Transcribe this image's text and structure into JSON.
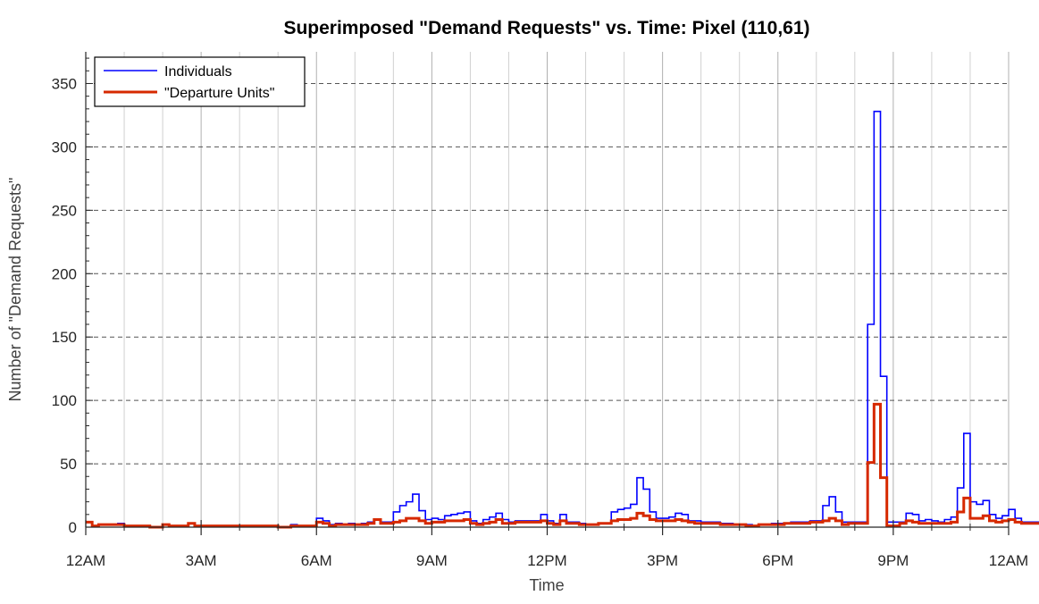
{
  "chart_data": {
    "type": "line",
    "title": "Superimposed \"Demand Requests\" vs. Time: Pixel (110,61)",
    "xlabel": "Time",
    "ylabel": "Number of \"Demand Requests\"",
    "x_tick_labels": [
      "12AM",
      "3AM",
      "6AM",
      "9AM",
      "12PM",
      "3PM",
      "6PM",
      "9PM",
      "12AM"
    ],
    "y_ticks": [
      0,
      50,
      100,
      150,
      200,
      250,
      300,
      350
    ],
    "ylim": [
      0,
      375
    ],
    "xlim_hours": [
      0,
      24
    ],
    "bin_minutes": 10,
    "grid": "x solid, y dashed",
    "legend_position": "top-left",
    "colors": {
      "individuals": "#0000ff",
      "departure_units": "#d62900",
      "grid": "#b0b0b0",
      "axis": "#262626"
    },
    "series": [
      {
        "name": "Individuals",
        "style": "step",
        "values": [
          4,
          1,
          2,
          2,
          2,
          3,
          1,
          1,
          1,
          1,
          0,
          0,
          2,
          1,
          1,
          1,
          3,
          1,
          1,
          1,
          1,
          1,
          1,
          1,
          1,
          1,
          1,
          1,
          1,
          1,
          0,
          0,
          2,
          1,
          1,
          1,
          7,
          5,
          2,
          3,
          2,
          3,
          2,
          3,
          4,
          6,
          4,
          4,
          12,
          17,
          20,
          26,
          13,
          6,
          7,
          6,
          9,
          10,
          11,
          12,
          5,
          3,
          6,
          8,
          11,
          6,
          4,
          5,
          5,
          5,
          5,
          10,
          5,
          3,
          10,
          4,
          4,
          3,
          2,
          2,
          3,
          3,
          12,
          14,
          15,
          18,
          39,
          30,
          12,
          7,
          7,
          8,
          11,
          10,
          5,
          5,
          4,
          4,
          4,
          3,
          3,
          2,
          2,
          2,
          1,
          2,
          2,
          3,
          3,
          3,
          4,
          4,
          4,
          5,
          5,
          17,
          24,
          12,
          4,
          4,
          4,
          4,
          160,
          328,
          119,
          4,
          4,
          4,
          11,
          10,
          5,
          6,
          5,
          4,
          6,
          8,
          31,
          74,
          20,
          18,
          21,
          10,
          7,
          9,
          14,
          7,
          4,
          4,
          4,
          4,
          7,
          6,
          8,
          9,
          8,
          8,
          8,
          6,
          5,
          4,
          2,
          2,
          2,
          2,
          2,
          3,
          2,
          2,
          3,
          6
        ]
      },
      {
        "name": "\"Departure Units\"",
        "style": "step",
        "values": [
          4,
          1,
          2,
          2,
          2,
          2,
          1,
          1,
          1,
          1,
          0,
          0,
          2,
          1,
          1,
          1,
          3,
          1,
          1,
          1,
          1,
          1,
          1,
          1,
          1,
          1,
          1,
          1,
          1,
          1,
          0,
          0,
          1,
          1,
          1,
          1,
          4,
          3,
          1,
          2,
          2,
          2,
          2,
          2,
          3,
          6,
          3,
          3,
          4,
          5,
          7,
          7,
          5,
          3,
          4,
          4,
          5,
          5,
          5,
          6,
          3,
          2,
          3,
          4,
          6,
          3,
          3,
          4,
          4,
          4,
          4,
          5,
          3,
          2,
          5,
          3,
          3,
          2,
          2,
          2,
          3,
          3,
          5,
          6,
          6,
          7,
          11,
          9,
          6,
          5,
          5,
          5,
          6,
          5,
          4,
          3,
          3,
          3,
          3,
          2,
          2,
          2,
          2,
          1,
          1,
          2,
          2,
          2,
          2,
          3,
          3,
          3,
          3,
          4,
          4,
          5,
          7,
          5,
          2,
          3,
          3,
          3,
          51,
          97,
          39,
          1,
          1,
          3,
          5,
          4,
          3,
          3,
          3,
          3,
          3,
          4,
          12,
          23,
          7,
          7,
          9,
          5,
          4,
          5,
          6,
          4,
          3,
          3,
          3,
          3,
          4,
          4,
          4,
          4,
          4,
          4,
          4,
          3,
          3,
          3,
          2,
          2,
          2,
          2,
          2,
          3,
          2,
          2,
          3,
          3
        ]
      }
    ]
  }
}
